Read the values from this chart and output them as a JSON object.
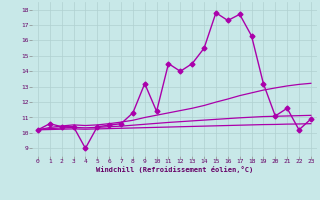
{
  "title": "",
  "xlabel": "Windchill (Refroidissement éolien,°C)",
  "background_color": "#c8e8e8",
  "grid_color": "#b0d0d0",
  "line_color": "#aa00aa",
  "xlim": [
    -0.5,
    23.5
  ],
  "ylim": [
    8.5,
    18.5
  ],
  "x_ticks": [
    0,
    1,
    2,
    3,
    4,
    5,
    6,
    7,
    8,
    9,
    10,
    11,
    12,
    13,
    14,
    15,
    16,
    17,
    18,
    19,
    20,
    21,
    22,
    23
  ],
  "y_ticks": [
    9,
    10,
    11,
    12,
    13,
    14,
    15,
    16,
    17,
    18
  ],
  "series": [
    {
      "x": [
        0,
        1,
        2,
        3,
        4,
        5,
        6,
        7,
        8,
        9,
        10,
        11,
        12,
        13,
        14,
        15,
        16,
        17,
        18,
        19,
        20,
        21,
        22,
        23
      ],
      "y": [
        10.2,
        10.6,
        10.4,
        10.4,
        9.0,
        10.4,
        10.5,
        10.6,
        11.3,
        13.2,
        11.4,
        14.5,
        14.0,
        14.5,
        15.5,
        17.8,
        17.3,
        17.7,
        16.3,
        13.2,
        11.1,
        11.6,
        10.2,
        10.9
      ],
      "marker": "D",
      "markersize": 2.5,
      "linewidth": 1.0
    },
    {
      "x": [
        0,
        1,
        2,
        3,
        4,
        5,
        6,
        7,
        8,
        9,
        10,
        11,
        12,
        13,
        14,
        15,
        16,
        17,
        18,
        19,
        20,
        21,
        22,
        23
      ],
      "y": [
        10.2,
        10.35,
        10.45,
        10.52,
        10.48,
        10.52,
        10.6,
        10.7,
        10.82,
        11.0,
        11.15,
        11.3,
        11.45,
        11.6,
        11.78,
        12.0,
        12.2,
        12.42,
        12.6,
        12.78,
        12.92,
        13.05,
        13.15,
        13.22
      ],
      "marker": null,
      "markersize": 0,
      "linewidth": 0.9
    },
    {
      "x": [
        0,
        1,
        2,
        3,
        4,
        5,
        6,
        7,
        8,
        9,
        10,
        11,
        12,
        13,
        14,
        15,
        16,
        17,
        18,
        19,
        20,
        21,
        22,
        23
      ],
      "y": [
        10.2,
        10.28,
        10.32,
        10.36,
        10.33,
        10.36,
        10.4,
        10.44,
        10.5,
        10.56,
        10.62,
        10.68,
        10.73,
        10.78,
        10.83,
        10.88,
        10.93,
        10.98,
        11.02,
        11.06,
        11.08,
        11.1,
        11.12,
        11.14
      ],
      "marker": null,
      "markersize": 0,
      "linewidth": 0.9
    },
    {
      "x": [
        0,
        1,
        2,
        3,
        4,
        5,
        6,
        7,
        8,
        9,
        10,
        11,
        12,
        13,
        14,
        15,
        16,
        17,
        18,
        19,
        20,
        21,
        22,
        23
      ],
      "y": [
        10.2,
        10.22,
        10.24,
        10.26,
        10.24,
        10.26,
        10.28,
        10.3,
        10.32,
        10.34,
        10.36,
        10.38,
        10.4,
        10.42,
        10.44,
        10.46,
        10.48,
        10.5,
        10.52,
        10.54,
        10.55,
        10.57,
        10.58,
        10.6
      ],
      "marker": null,
      "markersize": 0,
      "linewidth": 0.9
    }
  ]
}
